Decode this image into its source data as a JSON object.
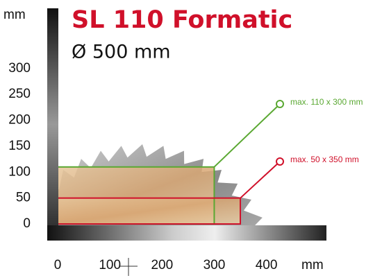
{
  "chart_data": {
    "type": "capacity",
    "title": "SL 110 Formatic",
    "subtitle": "Ø 500 mm",
    "ylabel": "mm",
    "xlabel": "mm",
    "xlim": [
      -20,
      515
    ],
    "ylim": [
      -32,
      416
    ],
    "xticks": [
      0,
      100,
      200,
      300,
      400
    ],
    "yticks": [
      0,
      50,
      100,
      150,
      200,
      250,
      300
    ],
    "series": [
      {
        "name": "max. 110 x 300 mm",
        "color": "#5aa832",
        "width": 300,
        "height": 110
      },
      {
        "name": "max. 50 x 350 mm",
        "color": "#d0102a",
        "width": 350,
        "height": 50
      }
    ]
  }
}
